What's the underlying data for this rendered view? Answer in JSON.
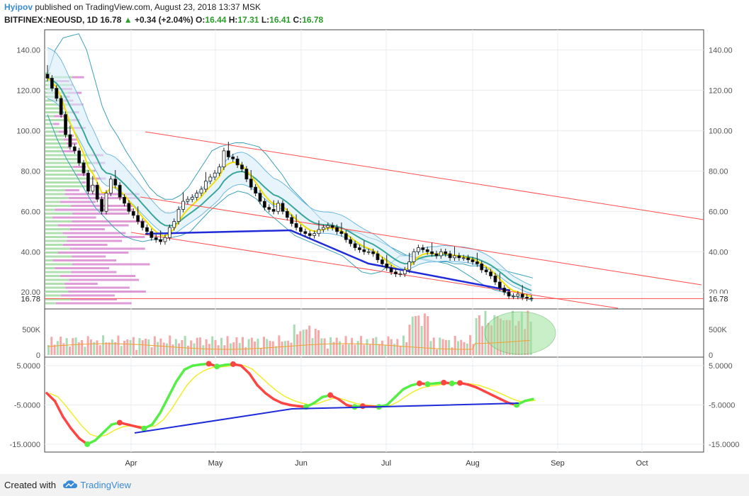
{
  "header": {
    "user": "Hyipov",
    "published": "published on TradingView.com, August 23, 2018 13:37 MSK",
    "symbol_line": "BITFINEX:NEOUSD, 1D",
    "last": "16.78",
    "change": "+0.34 (+2.04%)",
    "o_label": "O:",
    "o": "16.44",
    "h_label": "H:",
    "h": "17.31",
    "l_label": "L:",
    "l": "16.41",
    "c_label": "C:",
    "c": "16.78"
  },
  "footer": {
    "created": "Created with",
    "brand": "TradingView"
  },
  "colors": {
    "up": "#ffffff",
    "down": "#000000",
    "trend": "#ff4d4d",
    "blue_line": "#1f2bd8",
    "bb": "#3aa0b8",
    "bb_fill": "#d8ecf8",
    "ema_yellow": "#f1e000",
    "ema_teal": "#3aa69a",
    "vol_up": "#a8dcb4",
    "vol_down": "#f4a8a8",
    "profile_up": "#8fd28f",
    "profile_down": "#d070c8",
    "osc_red": "#ff4444",
    "osc_green": "#55ee44",
    "osc_yellow": "#f2ec2c",
    "highlight": "#9ee39e"
  },
  "chart_data": {
    "type": "candlestick",
    "x_labels": [
      "Apr",
      "May",
      "Jun",
      "Jul",
      "Aug",
      "Sep",
      "Oct"
    ],
    "price_axis": {
      "ticks": [
        20,
        40,
        60,
        80,
        100,
        120,
        140
      ],
      "labels": [
        "20.00",
        "40.00",
        "60.00",
        "80.00",
        "100.00",
        "120.00",
        "140.00"
      ],
      "ylim": [
        12,
        150
      ],
      "last_label": "16.78"
    },
    "volume_axis": {
      "ticks": [
        0,
        500000
      ],
      "labels": [
        "0",
        "500K"
      ]
    },
    "osc_axis": {
      "ticks": [
        5,
        -5,
        -15
      ],
      "labels": [
        "5.0000",
        "-5.0000",
        "-15.0000"
      ]
    },
    "price_close": [
      126,
      121,
      116,
      108,
      98,
      92,
      90,
      84,
      79,
      70,
      73,
      66,
      60,
      69,
      76,
      73,
      67,
      64,
      60,
      58,
      55,
      52,
      50,
      47,
      46,
      45,
      47,
      52,
      55,
      61,
      65,
      66,
      67,
      69,
      71,
      75,
      77,
      79,
      82,
      90,
      87,
      86,
      83,
      81,
      76,
      72,
      69,
      65,
      62,
      61,
      60,
      64,
      60,
      57,
      54,
      52,
      50,
      49,
      48,
      49,
      51,
      52,
      53,
      52,
      50,
      49,
      46,
      44,
      42,
      41,
      40,
      40,
      39,
      36,
      34,
      32,
      30,
      29,
      29,
      31,
      35,
      40,
      42,
      41,
      40,
      39,
      38,
      40,
      39,
      37,
      38,
      37,
      37,
      36,
      35,
      34,
      31,
      30,
      28,
      25,
      22,
      20,
      18,
      18,
      19,
      17.5,
      17,
      16.8
    ],
    "bb_upper": [
      128,
      140,
      146,
      147,
      148,
      140,
      126,
      112,
      103,
      97,
      90,
      84,
      78,
      72,
      68,
      66,
      66,
      68,
      72,
      78,
      84,
      90,
      92,
      93,
      94,
      94,
      93,
      92,
      88,
      83,
      78,
      72,
      68,
      64,
      60,
      56,
      54,
      52,
      51,
      50,
      49,
      47,
      46,
      44,
      42,
      40,
      38,
      37,
      36,
      35,
      35,
      35,
      34,
      34,
      33,
      33,
      32,
      32,
      31,
      30,
      29,
      28,
      27
    ],
    "bb_lower": [
      108,
      96,
      86,
      78,
      70,
      62,
      57,
      52,
      48,
      46,
      45,
      46,
      46,
      47,
      48,
      50,
      55,
      60,
      64,
      68,
      70,
      69,
      66,
      60,
      56,
      52,
      48,
      46,
      44,
      42,
      40,
      38,
      34,
      30,
      29,
      30,
      34,
      38,
      38,
      37,
      36,
      35,
      34,
      32,
      29,
      26,
      23,
      21,
      20,
      18,
      17,
      16
    ],
    "ema_yellow_hint": "follows closes with slight lag",
    "profile_note": "horizontal volume profile on left edge",
    "trendlines": {
      "channel_top": [
        [
          100,
          206
        ],
        [
          995,
          310
        ]
      ],
      "channel_mid": [
        [
          198,
          278
        ],
        [
          990,
          402
        ]
      ],
      "channel_bot": [
        [
          180,
          330
        ],
        [
          870,
          435
        ]
      ],
      "horizontal_last": 16.78
    },
    "osc_values": [
      -2,
      -4,
      -8,
      -11,
      -13.5,
      -15,
      -14,
      -12,
      -10,
      -9.5,
      -10,
      -10.5,
      -11,
      -10,
      -7,
      -3,
      1,
      4,
      5,
      5.3,
      5.5,
      4.8,
      5.2,
      5.4,
      5,
      3,
      0,
      -2,
      -3.5,
      -4.5,
      -5,
      -5.3,
      -5.5,
      -4.5,
      -3,
      -2.5,
      -3.5,
      -5,
      -5.5,
      -5.3,
      -5.4,
      -5.5,
      -5,
      -3,
      -1,
      0,
      0.5,
      0.3,
      0.5,
      0.7,
      0.5,
      0.6,
      0.2,
      -0.5,
      -1.5,
      -2.5,
      -3.5,
      -4.5,
      -5,
      -4,
      -3.5
    ]
  }
}
